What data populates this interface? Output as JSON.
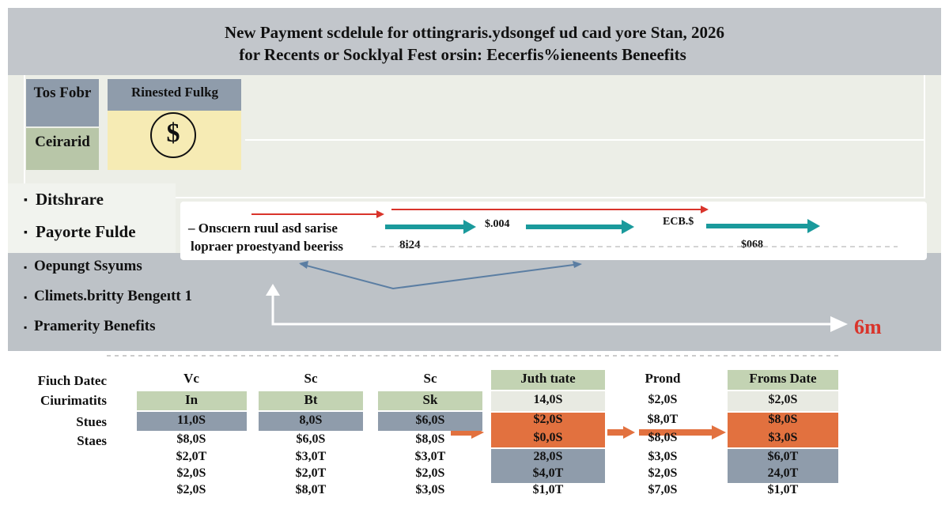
{
  "header": {
    "title_line1": "New Payment scdelule for ottingraris.ydsongef ud caıd yore Stan, 2026",
    "title_line2": "for Recents or Socklyal Fest orsin: Eecerfis%ieneents Beneefits"
  },
  "boxes": {
    "tos": "Tos Fobr",
    "ceirarid": "Ceirarid",
    "rinested": "Rinested Fulkg",
    "coin_icon": "dollar-coin-icon"
  },
  "list_top": [
    "Ditshrare",
    "Payorte Fulde"
  ],
  "list_bottom": [
    "Oepungt Ssyums",
    "Climets.britty Bengeıtt 1",
    "Pramerity Benefits"
  ],
  "flow": {
    "note_line1": "Onscıern ruul asd sarise",
    "note_line2": "lopraer proestyand beeriss",
    "v1": "$.004",
    "v2": "ECB.$",
    "v3": "8i24",
    "v4": "$068",
    "end_label": "6m"
  },
  "table": {
    "row_labels": [
      "Fiuch Datec",
      "Ciurimatits",
      "Stues",
      "Staes"
    ],
    "columns": [
      {
        "header": "Vc",
        "sub": "In",
        "values": [
          "11,0S",
          "$8,0S",
          "$2,0T",
          "$2,0S",
          "$2,0S"
        ]
      },
      {
        "header": "Sc",
        "sub": "Bt",
        "values": [
          "8,0S",
          "$6,0S",
          "$3,0T",
          "$2,0T",
          "$8,0T"
        ]
      },
      {
        "header": "Sc",
        "sub": "Sk",
        "values": [
          "$6,0S",
          "$8,0S",
          "$3,0T",
          "$2,0S",
          "$3,0S"
        ]
      },
      {
        "header": "Juth tıate",
        "values": [
          "14,0S",
          "$2,0S",
          "$0,0S",
          "28,0S",
          "$4,0T",
          "$1,0T"
        ]
      },
      {
        "header": "Prond",
        "values": [
          "$2,0S",
          "$8,0T",
          "$8,0S",
          "$3,0S",
          "$2,0S",
          "$7,0S"
        ]
      },
      {
        "header": "Froms Date",
        "values": [
          "$2,0S",
          "$8,0S",
          "$3,0S",
          "$6,0T",
          "24,0T",
          "$1,0T"
        ]
      }
    ]
  },
  "colors": {
    "gray_band": "#c2c6cb",
    "slate": "#8f9cab",
    "sage": "#c3d3b3",
    "yellow": "#f6ebb4",
    "orange": "#e2713f",
    "teal": "#1a9a9c",
    "red": "#d9342b"
  }
}
